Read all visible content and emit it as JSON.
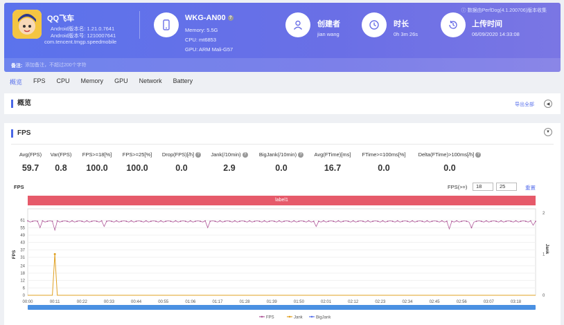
{
  "app": {
    "name": "QQ飞车",
    "android_version_name": "Android版本名: 1.21.0.7641",
    "android_version_code": "Android版本号: 1210007641",
    "package": "com.tencent.tmgp.speedmobile"
  },
  "device": {
    "model": "WKG-AN00",
    "memory": "Memory: 5.5G",
    "cpu": "CPU: mt6853",
    "gpu": "GPU: ARM Mali-G57"
  },
  "creator": {
    "title": "创建者",
    "value": "jian wang"
  },
  "duration": {
    "title": "时长",
    "value": "0h 3m 26s"
  },
  "upload": {
    "title": "上传时间",
    "value": "06/09/2020 14:33:08"
  },
  "source": "数据由PerfDog(4.1.200706)版本收集",
  "note": {
    "label": "备注:",
    "placeholder": "添加备注，不超过200个字符"
  },
  "tabs": [
    "概览",
    "FPS",
    "CPU",
    "Memory",
    "GPU",
    "Network",
    "Battery"
  ],
  "active_tab": 0,
  "overview": {
    "title": "概览",
    "export": "导出全部",
    "collapse_glyph": "◀"
  },
  "fps_section": {
    "title": "FPS",
    "toggle_glyph": "▼",
    "metrics": [
      {
        "label": "Avg(FPS)",
        "value": "59.7",
        "help": false
      },
      {
        "label": "Var(FPS)",
        "value": "0.8",
        "help": false
      },
      {
        "label": "FPS>=18[%]",
        "value": "100.0",
        "help": false
      },
      {
        "label": "FPS>=25[%]",
        "value": "100.0",
        "help": false
      },
      {
        "label": "Drop(FPS)[/h]",
        "value": "0.0",
        "help": true
      },
      {
        "label": "Jank(/10min)",
        "value": "2.9",
        "help": true
      },
      {
        "label": "BigJank(/10min)",
        "value": "0.0",
        "help": true
      },
      {
        "label": "Avg(FTime)[ms]",
        "value": "16.7",
        "help": false
      },
      {
        "label": "FTime>=100ms[%]",
        "value": "0.0",
        "help": false
      },
      {
        "label": "Delta(FTime)>100ms[/h]",
        "value": "0.0",
        "help": true
      }
    ],
    "chart_title": "FPS",
    "threshold_label": "FPS(>=)",
    "threshold_1": "18",
    "threshold_2": "25",
    "reset": "重置",
    "help_glyph": "?"
  },
  "chart_data": {
    "type": "line",
    "label_band": "label1",
    "y_left_label": "FPS",
    "y_right_label": "Jank",
    "y_left_ticks": [
      "0",
      "6",
      "12",
      "18",
      "24",
      "31",
      "37",
      "43",
      "49",
      "55",
      "61"
    ],
    "y_right_ticks": [
      "0",
      "1",
      "2"
    ],
    "x_ticks": [
      "00:00",
      "00:11",
      "00:22",
      "00:33",
      "00:44",
      "00:55",
      "01:06",
      "01:17",
      "01:28",
      "01:39",
      "01:50",
      "02:01",
      "02:12",
      "02:23",
      "02:34",
      "02:45",
      "02:56",
      "03:07",
      "03:18"
    ],
    "ylim_left": [
      0,
      67
    ],
    "ylim_right": [
      0,
      2
    ],
    "xlim_seconds": [
      0,
      206
    ],
    "legend": [
      "FPS",
      "Jank",
      "BigJank"
    ],
    "series": [
      {
        "name": "FPS",
        "color": "#b05a9a",
        "baseline": 60,
        "dips": [
          [
            5,
            55
          ],
          [
            11,
            53
          ],
          [
            31,
            56
          ],
          [
            73,
            55
          ],
          [
            117,
            56
          ],
          [
            171,
            54
          ],
          [
            180,
            55
          ],
          [
            205,
            57
          ]
        ]
      },
      {
        "name": "Jank",
        "color": "#e0a020",
        "events_seconds": [
          11
        ]
      },
      {
        "name": "BigJank",
        "color": "#5b73ec",
        "events_seconds": []
      }
    ]
  }
}
